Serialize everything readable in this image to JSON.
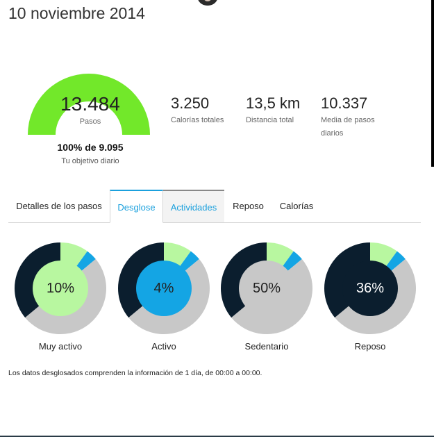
{
  "header": {
    "date": "10 noviembre 2014"
  },
  "summary": {
    "steps": "13.484",
    "steps_label": "Pasos",
    "goal_percent_text": "100% de 9.095",
    "goal_label": "Tu objetivo diario",
    "goal_fraction": 1.0,
    "gauge_color": "#72e82a"
  },
  "stats": [
    {
      "value": "3.250",
      "label": "Calorías totales"
    },
    {
      "value": "13,5 km",
      "label": "Distancia total"
    },
    {
      "value": "10.337",
      "label": "Media de pasos diarios"
    }
  ],
  "tabs": [
    {
      "label": "Detalles de los pasos",
      "state": "normal"
    },
    {
      "label": "Desglose",
      "state": "active"
    },
    {
      "label": "Actividades",
      "state": "highlight"
    },
    {
      "label": "Reposo",
      "state": "normal"
    },
    {
      "label": "Calorías",
      "state": "normal"
    }
  ],
  "breakdown": {
    "segments": [
      {
        "name": "Muy activo",
        "fraction": 0.1,
        "color": "#b8f7a0"
      },
      {
        "name": "Activo",
        "fraction": 0.04,
        "color": "#14a5e4"
      },
      {
        "name": "Sedentario",
        "fraction": 0.5,
        "color": "#c8c8c8"
      },
      {
        "name": "Reposo",
        "fraction": 0.36,
        "color": "#0b1e2e"
      }
    ],
    "cards": [
      {
        "pct": "10%",
        "name": "Muy activo",
        "center_color": "#b8f7a0",
        "text_color": "#222222"
      },
      {
        "pct": "4%",
        "name": "Activo",
        "center_color": "#14a5e4",
        "text_color": "#222222"
      },
      {
        "pct": "50%",
        "name": "Sedentario",
        "center_color": "#c8c8c8",
        "text_color": "#222222"
      },
      {
        "pct": "36%",
        "name": "Reposo",
        "center_color": "#0b1e2e",
        "text_color": "#ffffff"
      }
    ]
  },
  "footnote": "Los datos desglosados comprenden la información de 1 día, de 00:00 a 00:00."
}
